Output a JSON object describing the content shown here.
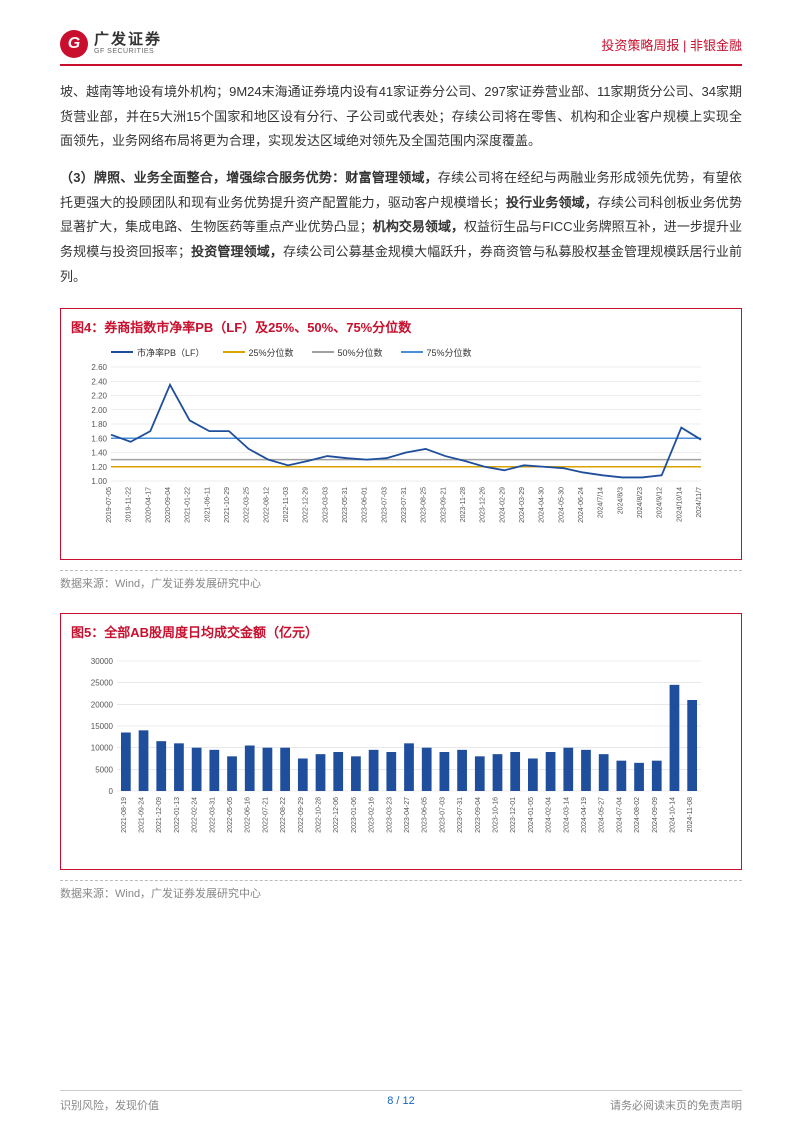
{
  "header": {
    "logo_cn": "广发证券",
    "logo_en": "GF SECURITIES",
    "right": "投资策略周报 | 非银金融"
  },
  "para1": "坡、越南等地设有境外机构；9M24末海通证券境内设有41家证券分公司、297家证券营业部、11家期货分公司、34家期货营业部，并在5大洲15个国家和地区设有分行、子公司或代表处；存续公司将在零售、机构和企业客户规模上实现全面领先，业务网络布局将更为合理，实现发达区域绝对领先及全国范围内深度覆盖。",
  "para2_lead": "（3）牌照、业务全面整合，增强综合服务优势：财富管理领域，",
  "para2_a": "存续公司将在经纪与两融业务形成领先优势，有望依托更强大的投顾团队和现有业务优势提升资产配置能力，驱动客户规模增长；",
  "para2_b_bold": "投行业务领域，",
  "para2_b": "存续公司科创板业务优势显著扩大，集成电路、生物医药等重点产业优势凸显；",
  "para2_c_bold": "机构交易领域，",
  "para2_c": "权益衍生品与FICC业务牌照互补，进一步提升业务规模与投资回报率；",
  "para2_d_bold": "投资管理领域，",
  "para2_d": "存续公司公募基金规模大幅跃升，券商资管与私募股权基金管理规模跃居行业前列。",
  "chart4": {
    "title": "图4：券商指数市净率PB（LF）及25%、50%、75%分位数",
    "legend": [
      "市净率PB（LF）",
      "25%分位数",
      "50%分位数",
      "75%分位数"
    ],
    "legend_colors": [
      "#1e4e9c",
      "#d9a400",
      "#a0a0a0",
      "#4a90d9"
    ],
    "y_min": 1.0,
    "y_max": 2.6,
    "y_step": 0.2,
    "q25": 1.2,
    "q50": 1.3,
    "q75": 1.6,
    "x_labels": [
      "2019-07-05",
      "2019-11-22",
      "2020-04-17",
      "2020-09-04",
      "2021-01-22",
      "2021-06-11",
      "2021-10-29",
      "2022-03-25",
      "2022-08-12",
      "2022-11-03",
      "2022-12-29",
      "2023-03-03",
      "2023-05-31",
      "2023-06-01",
      "2023-07-03",
      "2023-07-31",
      "2023-08-25",
      "2023-09-21",
      "2023-11-28",
      "2023-12-26",
      "2024-02-29",
      "2024-03-29",
      "2024-04-30",
      "2024-05-30",
      "2024-06-24",
      "2024/7/14",
      "2024/8/3",
      "2024/8/23",
      "2024/9/12",
      "2024/10/14",
      "2024/11/7"
    ],
    "series": [
      1.65,
      1.55,
      1.7,
      2.35,
      1.85,
      1.7,
      1.7,
      1.45,
      1.3,
      1.22,
      1.28,
      1.35,
      1.32,
      1.3,
      1.32,
      1.4,
      1.45,
      1.35,
      1.28,
      1.2,
      1.15,
      1.22,
      1.2,
      1.18,
      1.12,
      1.08,
      1.05,
      1.05,
      1.08,
      1.75,
      1.58
    ],
    "line_color": "#1e4e9c",
    "grid_color": "#d9d9d9",
    "bg": "#ffffff"
  },
  "chart5": {
    "title": "图5：全部AB股周度日均成交金额（亿元）",
    "y_min": 0,
    "y_max": 30000,
    "y_step": 5000,
    "bar_color": "#1e4e9c",
    "grid_color": "#d9d9d9",
    "x_labels": [
      "2021-08-19",
      "2021-09-24",
      "2021-12-09",
      "2022-01-13",
      "2022-02-24",
      "2022-03-31",
      "2022-05-05",
      "2022-06-16",
      "2022-07-21",
      "2022-08-22",
      "2022-09-29",
      "2022-10-28",
      "2022-12-06",
      "2023-01-06",
      "2023-02-16",
      "2023-03-23",
      "2023-04-27",
      "2023-06-05",
      "2023-07-03",
      "2023-07-31",
      "2023-09-04",
      "2023-10-16",
      "2023-12-01",
      "2024-01-05",
      "2024-02-04",
      "2024-03-14",
      "2024-04-19",
      "2024-05-27",
      "2024-07-04",
      "2024-08-02",
      "2024-09-09",
      "2024-10-14",
      "2024-11-08"
    ],
    "values": [
      13500,
      14000,
      11500,
      11000,
      10000,
      9500,
      8000,
      10500,
      10000,
      10000,
      7500,
      8500,
      9000,
      8000,
      9500,
      9000,
      11000,
      10000,
      9000,
      9500,
      8000,
      8500,
      9000,
      7500,
      9000,
      10000,
      9500,
      8500,
      7000,
      6500,
      7000,
      24500,
      21000
    ]
  },
  "source": "数据来源：Wind，广发证券发展研究中心",
  "footer": {
    "left": "识别风险，发现价值",
    "right": "请务必阅读末页的免责声明",
    "page": "8 / 12"
  }
}
